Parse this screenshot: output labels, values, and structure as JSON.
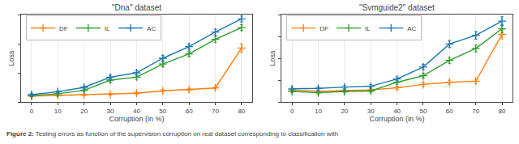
{
  "chart_data": [
    {
      "type": "line",
      "title": "\"Dna\" dataset",
      "x_label": "Corruption (in %)",
      "y_label": "Loss",
      "x": [
        0,
        10,
        20,
        30,
        40,
        50,
        60,
        70,
        80
      ],
      "series": [
        {
          "name": "DF",
          "color": "#ff7f0e",
          "marker": "+",
          "values": [
            0.02,
            0.022,
            0.024,
            0.026,
            0.03,
            0.038,
            0.042,
            0.048,
            0.185
          ],
          "error": [
            0.003,
            0.003,
            0.003,
            0.003,
            0.004,
            0.004,
            0.004,
            0.004,
            0.015
          ]
        },
        {
          "name": "IL",
          "color": "#2ca02c",
          "marker": "+",
          "values": [
            0.022,
            0.028,
            0.04,
            0.075,
            0.085,
            0.13,
            0.165,
            0.215,
            0.255
          ],
          "error": [
            0.004,
            0.004,
            0.005,
            0.007,
            0.007,
            0.009,
            0.009,
            0.01,
            0.01
          ]
        },
        {
          "name": "AC",
          "color": "#1f77b4",
          "marker": "+",
          "values": [
            0.025,
            0.035,
            0.05,
            0.085,
            0.1,
            0.15,
            0.19,
            0.24,
            0.285
          ],
          "error": [
            0.004,
            0.004,
            0.005,
            0.007,
            0.007,
            0.009,
            0.009,
            0.01,
            0.01
          ]
        }
      ],
      "xlim": [
        -4,
        84
      ],
      "xticks": [
        0,
        10,
        20,
        30,
        40,
        50,
        60,
        70,
        80
      ],
      "ylim": [
        0,
        0.3
      ],
      "yticks": [
        0,
        0.1,
        0.2,
        0.3
      ],
      "tick_labels": "x",
      "grid": "x",
      "legend": "upper left",
      "annotations": [
        "Figure 2:",
        "Testing errors as function of the supervision corruption on real dataset corresponding to classification with"
      ]
    },
    {
      "type": "line",
      "title": "\"Svmguide2\" dataset",
      "x_label": "Corruption (in %)",
      "y_label": "Loss",
      "x": [
        0,
        10,
        20,
        30,
        40,
        50,
        60,
        70,
        80
      ],
      "series": [
        {
          "name": "DF",
          "color": "#ff7f0e",
          "marker": "+",
          "values": [
            0.055,
            0.048,
            0.052,
            0.055,
            0.065,
            0.08,
            0.09,
            0.095,
            0.31
          ],
          "error": [
            0.007,
            0.006,
            0.006,
            0.006,
            0.007,
            0.008,
            0.009,
            0.009,
            0.022
          ]
        },
        {
          "name": "IL",
          "color": "#2ca02c",
          "marker": "+",
          "values": [
            0.048,
            0.042,
            0.048,
            0.05,
            0.09,
            0.12,
            0.19,
            0.245,
            0.335
          ],
          "error": [
            0.006,
            0.006,
            0.006,
            0.006,
            0.009,
            0.011,
            0.013,
            0.016,
            0.018
          ]
        },
        {
          "name": "AC",
          "color": "#1f77b4",
          "marker": "+",
          "values": [
            0.06,
            0.062,
            0.068,
            0.072,
            0.105,
            0.16,
            0.265,
            0.305,
            0.37
          ],
          "error": [
            0.007,
            0.007,
            0.007,
            0.007,
            0.009,
            0.012,
            0.016,
            0.018,
            0.02
          ]
        }
      ],
      "xlim": [
        -4,
        84
      ],
      "xticks": [
        0,
        10,
        20,
        30,
        40,
        50,
        60,
        70,
        80
      ],
      "ylim": [
        0,
        0.4
      ],
      "yticks": [
        0,
        0.1,
        0.2,
        0.3,
        0.4
      ],
      "tick_labels": "x",
      "grid": "x",
      "legend": "upper left"
    }
  ]
}
